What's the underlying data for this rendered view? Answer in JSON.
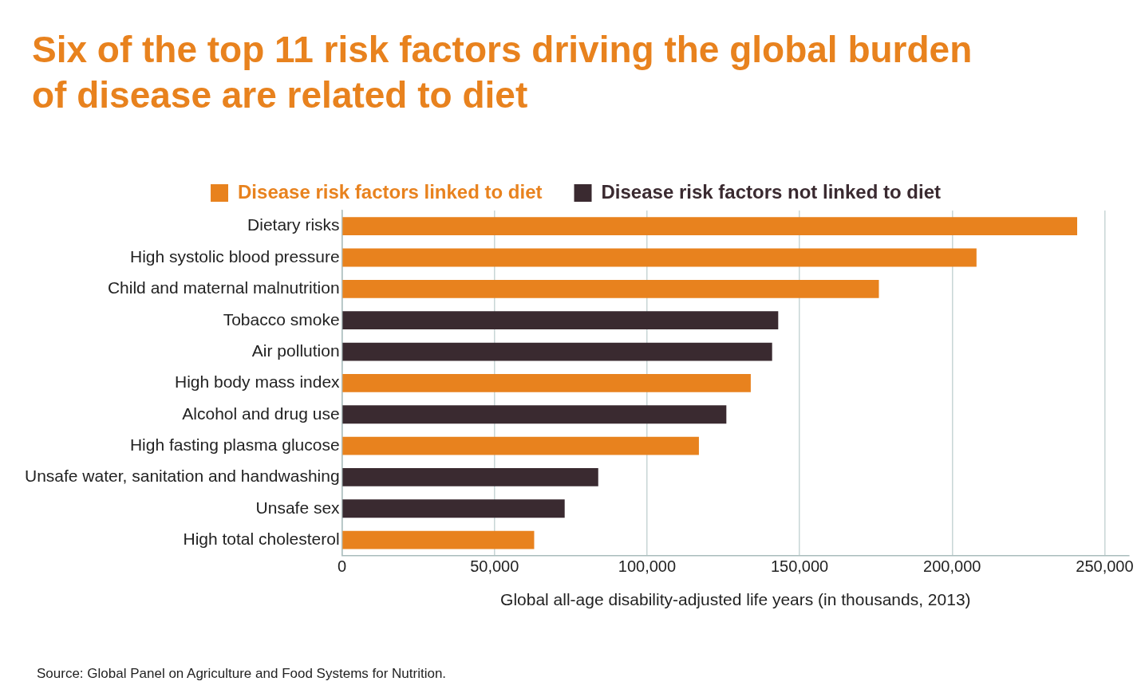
{
  "chart_data": {
    "type": "bar",
    "orientation": "horizontal",
    "title": "Six of the top 11 risk factors driving the global burden of disease are related to diet",
    "categories": [
      "Dietary risks",
      "High systolic blood pressure",
      "Child and maternal malnutrition",
      "Tobacco smoke",
      "Air pollution",
      "High body mass index",
      "Alcohol and drug use",
      "High fasting plasma glucose",
      "Unsafe water, sanitation and handwashing",
      "Unsafe sex",
      "High total cholesterol"
    ],
    "series": [
      {
        "name": "Disease risk factors linked to diet",
        "color": "#e8821e",
        "values": [
          241000,
          208000,
          176000,
          null,
          null,
          134000,
          null,
          117000,
          null,
          null,
          63000
        ]
      },
      {
        "name": "Disease risk factors not linked to diet",
        "color": "#3a2a30",
        "values": [
          null,
          null,
          null,
          143000,
          141000,
          null,
          126000,
          null,
          84000,
          73000,
          null
        ]
      }
    ],
    "xlabel": "Global all-age disability-adjusted life years (in thousands, 2013)",
    "xlim": [
      0,
      258000
    ],
    "xticks": [
      0,
      {
        "value": 50000,
        "label": "50,000"
      },
      {
        "value": 100000,
        "label": "100,000"
      },
      {
        "value": 150000,
        "label": "150,000"
      },
      {
        "value": 200000,
        "label": "200,000"
      },
      {
        "value": 250000,
        "label": "250,000"
      }
    ],
    "grid": "x",
    "legend": "top",
    "annotations": [
      "Source: Global Panel on Agriculture and Food Systems for Nutrition."
    ]
  }
}
